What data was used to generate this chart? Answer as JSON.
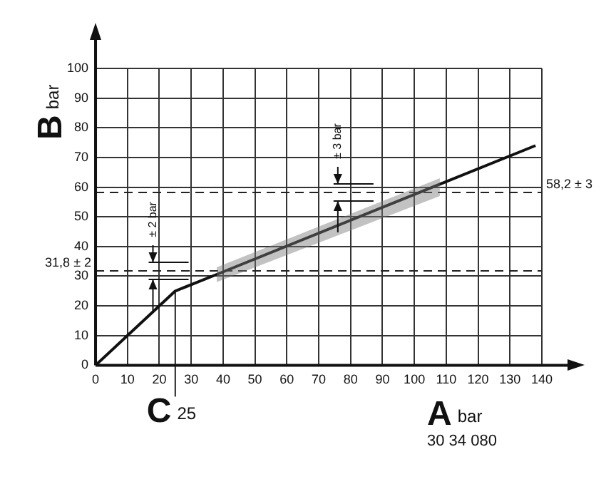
{
  "chart_data": {
    "type": "line",
    "xlabel": "A bar",
    "ylabel": "B bar",
    "x": [
      0,
      25,
      38,
      108,
      138
    ],
    "series": [
      {
        "color": "#111111",
        "values": [
          0,
          25,
          30.6,
          61,
          74
        ],
        "lower": [
          null,
          null,
          28,
          57,
          null
        ],
        "upper": [
          null,
          null,
          33,
          63,
          null
        ]
      }
    ],
    "xlim": [
      0,
      140
    ],
    "xticks": [
      0,
      10,
      20,
      30,
      40,
      50,
      60,
      70,
      80,
      90,
      100,
      110,
      120,
      130,
      140
    ],
    "ylim": [
      0,
      100
    ],
    "yticks": [
      0,
      10,
      20,
      30,
      40,
      50,
      60,
      70,
      80,
      90,
      100
    ],
    "grid": true,
    "marker": "none",
    "line_style": "solid",
    "ref_lines": [
      {
        "axis": "y",
        "value": 31.8,
        "label": "31,8 ± 2",
        "line_style": "dashed"
      },
      {
        "axis": "y",
        "value": 58.2,
        "label": "58,2 ± 3",
        "line_style": "dashed"
      },
      {
        "axis": "x",
        "value": 25,
        "label": "C 25"
      }
    ],
    "annotations": [
      "± 2 bar",
      "± 3 bar",
      "30 34 080"
    ]
  }
}
